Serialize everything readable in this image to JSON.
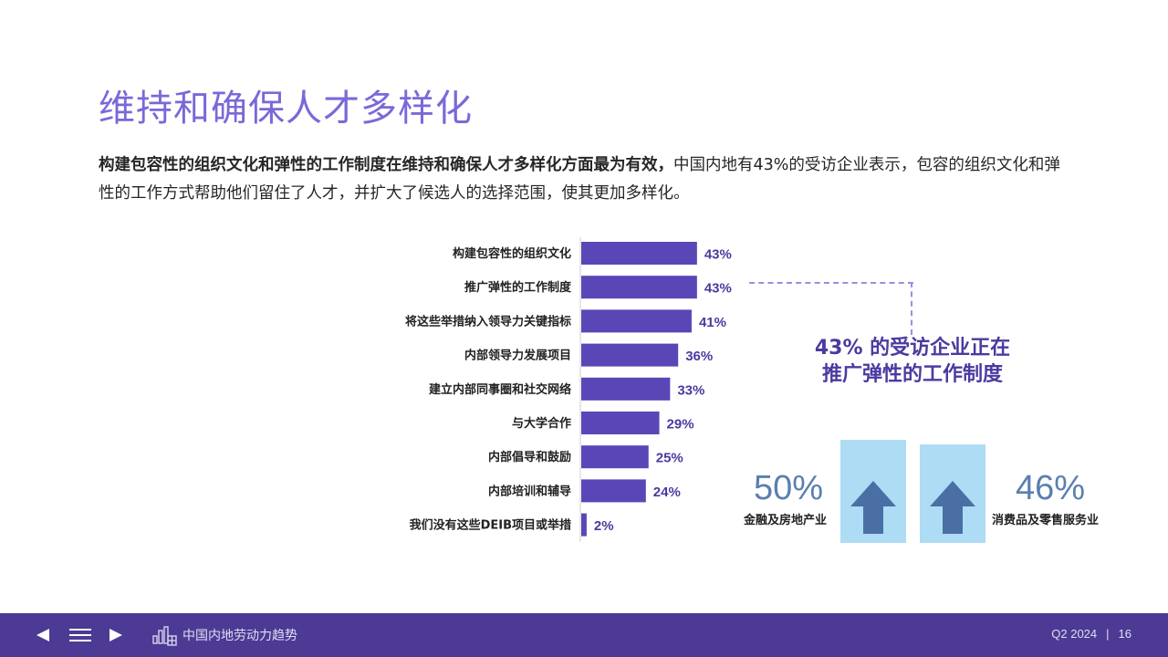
{
  "slide": {
    "title": "维持和确保人才多样化",
    "intro_bold": "构建包容性的组织文化和弹性的工作制度在维持和确保人才多样化方面最为有效，",
    "intro_rest": "中国内地有43%的受访企业表示，包容的组织文化和弹性的工作方式帮助他们留住了人才，并扩大了候选人的选择范围，使其更加多样化。"
  },
  "chart_data": {
    "type": "bar",
    "orientation": "horizontal",
    "categories": [
      "构建包容性的组织文化",
      "推广弹性的工作制度",
      "将这些举措纳入领导力关键指标",
      "内部领导力发展项目",
      "建立内部同事圈和社交网络",
      "与大学合作",
      "内部倡导和鼓励",
      "内部培训和辅导",
      "我们没有这些DEIB项目或举措"
    ],
    "values": [
      43,
      43,
      41,
      36,
      33,
      29,
      25,
      24,
      2
    ],
    "value_labels": [
      "43%",
      "43%",
      "41%",
      "36%",
      "33%",
      "29%",
      "25%",
      "24%",
      "2%"
    ],
    "unit": "%",
    "bar_color": "#5b46b8",
    "label_color": "#4b3aa0"
  },
  "callout": {
    "line1": "43% 的受访企业正在",
    "line2": "推广弹性的工作制度"
  },
  "stats": [
    {
      "value": "50%",
      "label": "金融及房地产业"
    },
    {
      "value": "46%",
      "label": "消费品及零售服务业"
    }
  ],
  "footer": {
    "brand": "中国内地劳动力趋势",
    "period": "Q2 2024",
    "page": "16"
  },
  "icons": {
    "prev": "triangle-left-icon",
    "menu": "hamburger-menu-icon",
    "next": "triangle-right-icon",
    "brand": "building-chart-icon",
    "up_arrow": "up-arrow-icon"
  },
  "colors": {
    "title": "#7b68d8",
    "accent": "#4b3aa0",
    "stat_box": "#aedcf4",
    "arrow": "#4a6fa5",
    "footer_bg": "#4d3a94"
  }
}
